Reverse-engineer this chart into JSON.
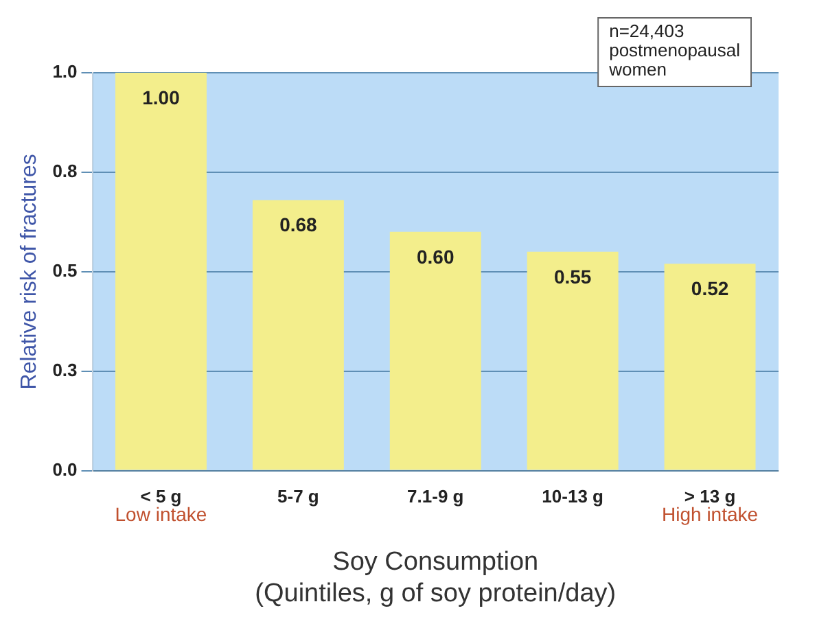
{
  "chart_data": {
    "type": "bar",
    "ylabel": "Relative risk of fractures",
    "xlabel": "Soy Consumption\n(Quintiles, g of soy protein/day)",
    "categories": [
      "< 5 g",
      "5-7 g",
      "7.1-9 g",
      "10-13 g",
      "> 13 g"
    ],
    "values": [
      1.0,
      0.68,
      0.6,
      0.55,
      0.52
    ],
    "color": "#f3ee8c",
    "value_labels": [
      "1.00",
      "0.68",
      "0.60",
      "0.55",
      "0.52"
    ],
    "ylim": [
      0,
      1
    ],
    "yticks": [
      {
        "value": 0,
        "label": "0.0"
      },
      {
        "value": 0.25,
        "label": "0.3"
      },
      {
        "value": 0.5,
        "label": "0.5"
      },
      {
        "value": 0.75,
        "label": "0.8"
      },
      {
        "value": 1,
        "label": "1.0"
      }
    ],
    "grid": "y",
    "annotations": [
      "n=24,403\npostmenopausal\nwomen",
      "Low intake",
      "High intake"
    ]
  }
}
